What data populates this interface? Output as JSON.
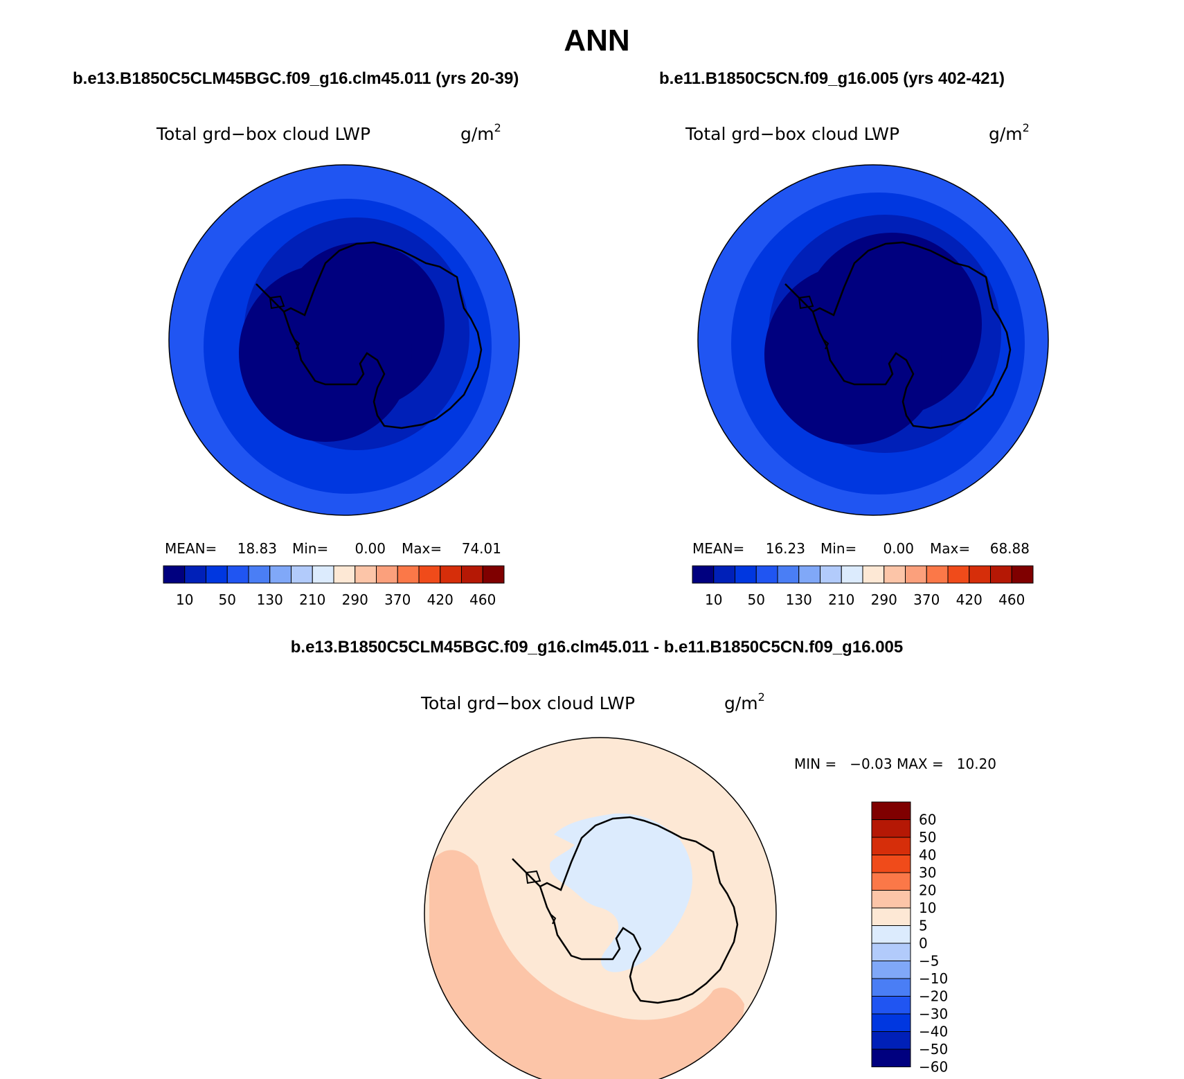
{
  "page_title": "ANN",
  "panels": [
    {
      "case": "b.e13.B1850C5CLM45BGC.f09_g16.clm45.011 (yrs 20-39)",
      "variable": "Total grd−box cloud LWP",
      "units": "g/m",
      "units_exp": "2",
      "stats": {
        "mean_label": "MEAN=",
        "mean": "18.83",
        "min_label": "Min=",
        "min": "0.00",
        "max_label": "Max=",
        "max": "74.01"
      }
    },
    {
      "case": "b.e11.B1850C5CN.f09_g16.005 (yrs 402-421)",
      "variable": "Total grd−box cloud LWP",
      "units": "g/m",
      "units_exp": "2",
      "stats": {
        "mean_label": "MEAN=",
        "mean": "16.23",
        "min_label": "Min=",
        "min": "0.00",
        "max_label": "Max=",
        "max": "68.88"
      }
    }
  ],
  "colorbar_field": {
    "colors": [
      "#00007f",
      "#0020b8",
      "#0037e0",
      "#2055f2",
      "#4a7ef5",
      "#80a8f8",
      "#b2cbfb",
      "#dcebfd",
      "#fde8d5",
      "#fcc5a8",
      "#fba07c",
      "#fb7848",
      "#f04b1a",
      "#d62e0a",
      "#b51805",
      "#7f0000"
    ],
    "labels": [
      "10",
      "50",
      "130",
      "210",
      "290",
      "370",
      "420",
      "460"
    ]
  },
  "diff": {
    "title": "b.e13.B1850C5CLM45BGC.f09_g16.clm45.011 - b.e11.B1850C5CN.f09_g16.005",
    "variable": "Total grd−box cloud LWP",
    "units": "g/m",
    "units_exp": "2",
    "minmax_text": "MIN =   −0.03 MAX =   10.20",
    "colors": [
      "#7f0000",
      "#b51805",
      "#d62e0a",
      "#f04b1a",
      "#fb7848",
      "#fcc5a8",
      "#fde8d5",
      "#dcebfd",
      "#b2cbfb",
      "#80a8f8",
      "#4a7ef5",
      "#2055f2",
      "#0037e0",
      "#0020b8",
      "#00007f"
    ],
    "labels": [
      "60",
      "50",
      "40",
      "30",
      "20",
      "10",
      "5",
      "0",
      "−5",
      "−10",
      "−20",
      "−30",
      "−40",
      "−50",
      "−60"
    ]
  }
}
